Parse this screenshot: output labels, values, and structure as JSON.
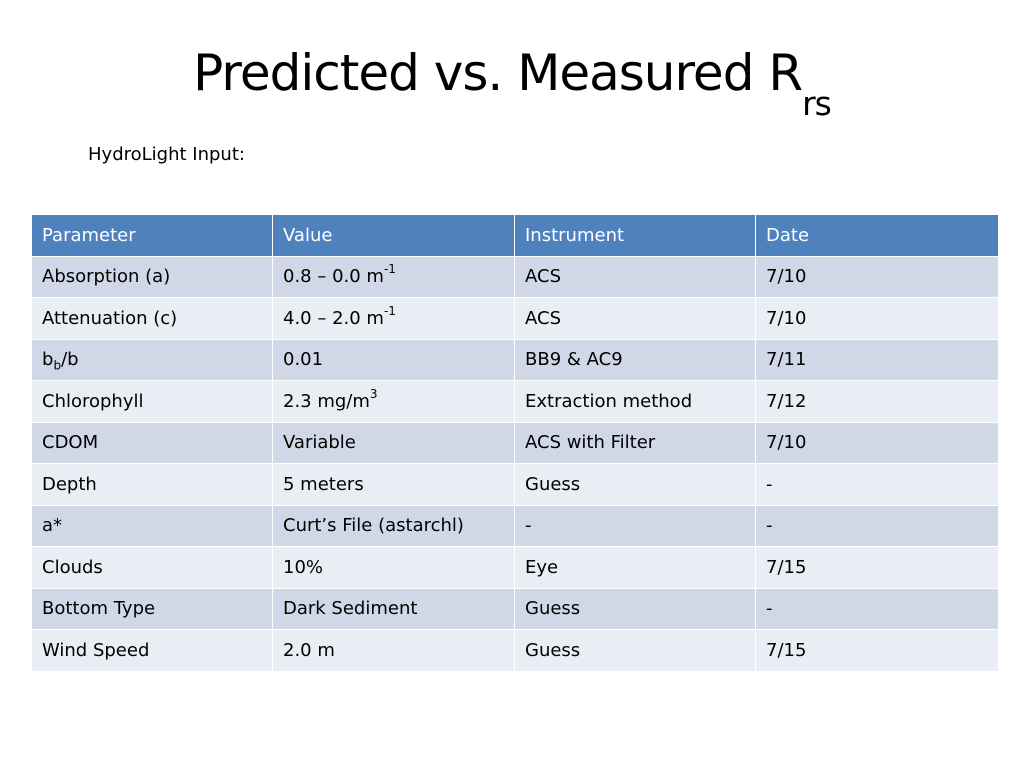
{
  "slide": {
    "title_main": "Predicted vs. Measured R",
    "title_subscript": "rs",
    "subtitle": "HydroLight Input:"
  },
  "table": {
    "headers": [
      "Parameter",
      "Value",
      "Instrument",
      "Date"
    ],
    "rows": [
      {
        "parameter": "Absorption (a)",
        "value": "0.8 – 0.0 m",
        "value_sup": "-1",
        "instrument": "ACS",
        "date": "7/10"
      },
      {
        "parameter": "Attenuation (c)",
        "value": "4.0 – 2.0 m",
        "value_sup": "-1",
        "instrument": "ACS",
        "date": "7/10"
      },
      {
        "parameter": "b",
        "parameter_sub": "b",
        "parameter_suffix": "/b",
        "value": "0.01",
        "instrument": "BB9 & AC9",
        "date": "7/11"
      },
      {
        "parameter": "Chlorophyll",
        "value": "2.3 mg/m",
        "value_sup": "3",
        "instrument": "Extraction method",
        "date": "7/12"
      },
      {
        "parameter": "CDOM",
        "value": "Variable",
        "instrument": "ACS with Filter",
        "date": "7/10"
      },
      {
        "parameter": "Depth",
        "value": "5 meters",
        "instrument": "Guess",
        "date": "-"
      },
      {
        "parameter": "a*",
        "value": "Curt’s File (astarchl)",
        "instrument": "-",
        "date": "-"
      },
      {
        "parameter": "Clouds",
        "value": "10%",
        "instrument": "Eye",
        "date": "7/15"
      },
      {
        "parameter": "Bottom Type",
        "value": "Dark Sediment",
        "instrument": "Guess",
        "date": "-"
      },
      {
        "parameter": "Wind Speed",
        "value": "2.0 m",
        "instrument": "Guess",
        "date": "7/15"
      }
    ]
  },
  "colors": {
    "header_bg": "#4f81bd",
    "row_odd_bg": "#d0d8e8",
    "row_even_bg": "#e9edf4"
  }
}
